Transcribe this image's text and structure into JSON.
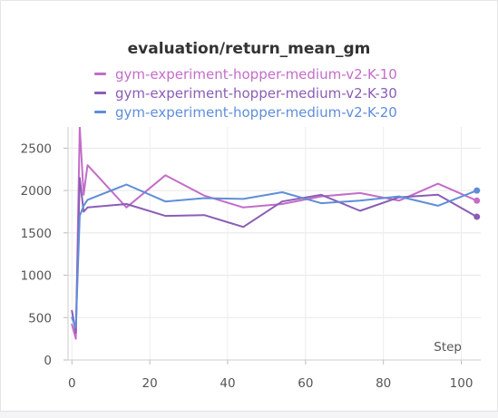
{
  "chart_data": {
    "type": "line",
    "title": "evaluation/return_mean_gm",
    "xlabel": "Step",
    "ylabel": "",
    "xlim": [
      -1,
      105
    ],
    "ylim": [
      0,
      2750
    ],
    "xticks": [
      0,
      20,
      40,
      60,
      80,
      100
    ],
    "yticks": [
      0,
      500,
      1000,
      1500,
      2000,
      2500
    ],
    "grid": true,
    "legend_position": "top",
    "series": [
      {
        "name": "gym-experiment-hopper-medium-v2-K-10",
        "color": "#c36dc9",
        "x": [
          0,
          1,
          2,
          3,
          4,
          14,
          24,
          34,
          44,
          54,
          64,
          74,
          84,
          94,
          104
        ],
        "y": [
          420,
          250,
          2750,
          1950,
          2300,
          1800,
          2180,
          1940,
          1800,
          1840,
          1930,
          1970,
          1880,
          2080,
          1880
        ],
        "end_marker": true
      },
      {
        "name": "gym-experiment-hopper-medium-v2-K-30",
        "color": "#8b5db5",
        "x": [
          0,
          1,
          2,
          3,
          4,
          14,
          24,
          34,
          44,
          54,
          64,
          74,
          84,
          94,
          104
        ],
        "y": [
          580,
          320,
          2150,
          1750,
          1800,
          1840,
          1700,
          1710,
          1570,
          1870,
          1950,
          1760,
          1920,
          1950,
          1690
        ],
        "end_marker": true
      },
      {
        "name": "gym-experiment-hopper-medium-v2-K-20",
        "color": "#5f8ed8",
        "x": [
          0,
          1,
          2,
          3,
          4,
          14,
          24,
          34,
          44,
          54,
          64,
          74,
          84,
          94,
          104
        ],
        "y": [
          500,
          380,
          1700,
          1820,
          1890,
          2070,
          1870,
          1910,
          1900,
          1980,
          1850,
          1880,
          1930,
          1820,
          2000
        ],
        "end_marker": true
      }
    ]
  }
}
